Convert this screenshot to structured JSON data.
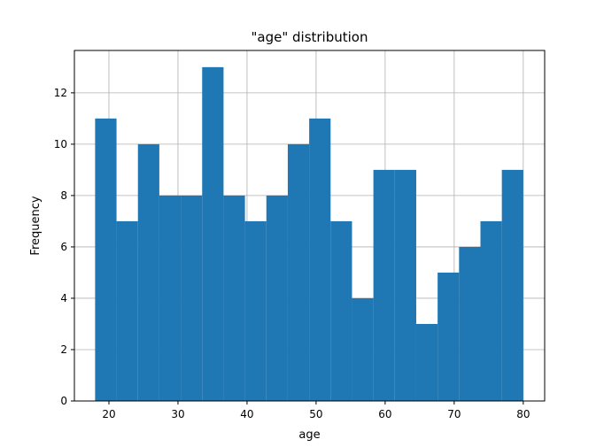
{
  "chart_data": {
    "type": "bar",
    "title": "\"age\" distribution",
    "xlabel": "age",
    "ylabel": "Frequency",
    "xlim": [
      15,
      83.1
    ],
    "ylim": [
      0,
      13.65
    ],
    "grid": true,
    "bar_color": "#1f77b4",
    "grid_color": "#b0b0b0",
    "bin_edges": [
      18,
      21.1,
      24.2,
      27.3,
      30.4,
      33.5,
      36.6,
      39.7,
      42.8,
      45.9,
      49.0,
      52.1,
      55.2,
      58.3,
      61.4,
      64.5,
      67.6,
      70.7,
      73.8,
      76.9,
      80
    ],
    "values": [
      11,
      7,
      10,
      8,
      8,
      13,
      8,
      7,
      8,
      10,
      11,
      7,
      4,
      9,
      9,
      3,
      5,
      6,
      7,
      9
    ],
    "x_ticks": [
      20,
      30,
      40,
      50,
      60,
      70,
      80
    ],
    "x_tick_labels": [
      "20",
      "30",
      "40",
      "50",
      "60",
      "70",
      "80"
    ],
    "y_ticks": [
      0,
      2,
      4,
      6,
      8,
      10,
      12
    ],
    "y_tick_labels": [
      "0",
      "2",
      "4",
      "6",
      "8",
      "10",
      "12"
    ]
  }
}
